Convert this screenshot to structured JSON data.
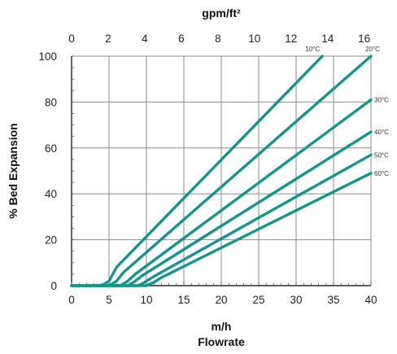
{
  "chart_data": {
    "type": "line",
    "bottom_axis": {
      "unit_label": "m/h",
      "title": "Flowrate",
      "range": [
        0,
        40
      ],
      "ticks": [
        "0",
        "5",
        "10",
        "15",
        "20",
        "25",
        "30",
        "35",
        "40"
      ],
      "tick_values": [
        0,
        5,
        10,
        15,
        20,
        25,
        30,
        35,
        40
      ]
    },
    "top_axis": {
      "title": "gpm/ft²",
      "range": [
        0,
        16.37
      ],
      "ticks": [
        "0",
        "2",
        "4",
        "6",
        "8",
        "10",
        "12",
        "14",
        "16"
      ],
      "tick_values": [
        0,
        2,
        4,
        6,
        8,
        10,
        12,
        14,
        16
      ]
    },
    "y_axis": {
      "title": "% Bed Expansion",
      "range": [
        0,
        100
      ],
      "ticks": [
        "0",
        "20",
        "40",
        "60",
        "80",
        "100"
      ],
      "tick_values": [
        0,
        20,
        40,
        60,
        80,
        100
      ]
    },
    "grid": true,
    "line_color": "#14978a",
    "series": [
      {
        "name": "10°C",
        "x": [
          0,
          4,
          5,
          6,
          33.5
        ],
        "y": [
          0,
          0,
          2,
          8,
          100
        ]
      },
      {
        "name": "20°C",
        "x": [
          0,
          5,
          6,
          7,
          40
        ],
        "y": [
          0,
          0,
          2,
          6,
          100
        ]
      },
      {
        "name": "30°C",
        "x": [
          0,
          6.5,
          7.5,
          8.5,
          40
        ],
        "y": [
          0,
          0,
          2,
          5,
          81
        ]
      },
      {
        "name": "40°C",
        "x": [
          0,
          7.5,
          8.5,
          9.5,
          40
        ],
        "y": [
          0,
          0,
          2,
          4.5,
          67
        ]
      },
      {
        "name": "50°C",
        "x": [
          0,
          9,
          10,
          11,
          40
        ],
        "y": [
          0,
          0,
          2,
          4,
          57
        ]
      },
      {
        "name": "60°C",
        "x": [
          0,
          10,
          11,
          12,
          40
        ],
        "y": [
          0,
          0,
          1.5,
          3.5,
          49
        ]
      }
    ]
  }
}
